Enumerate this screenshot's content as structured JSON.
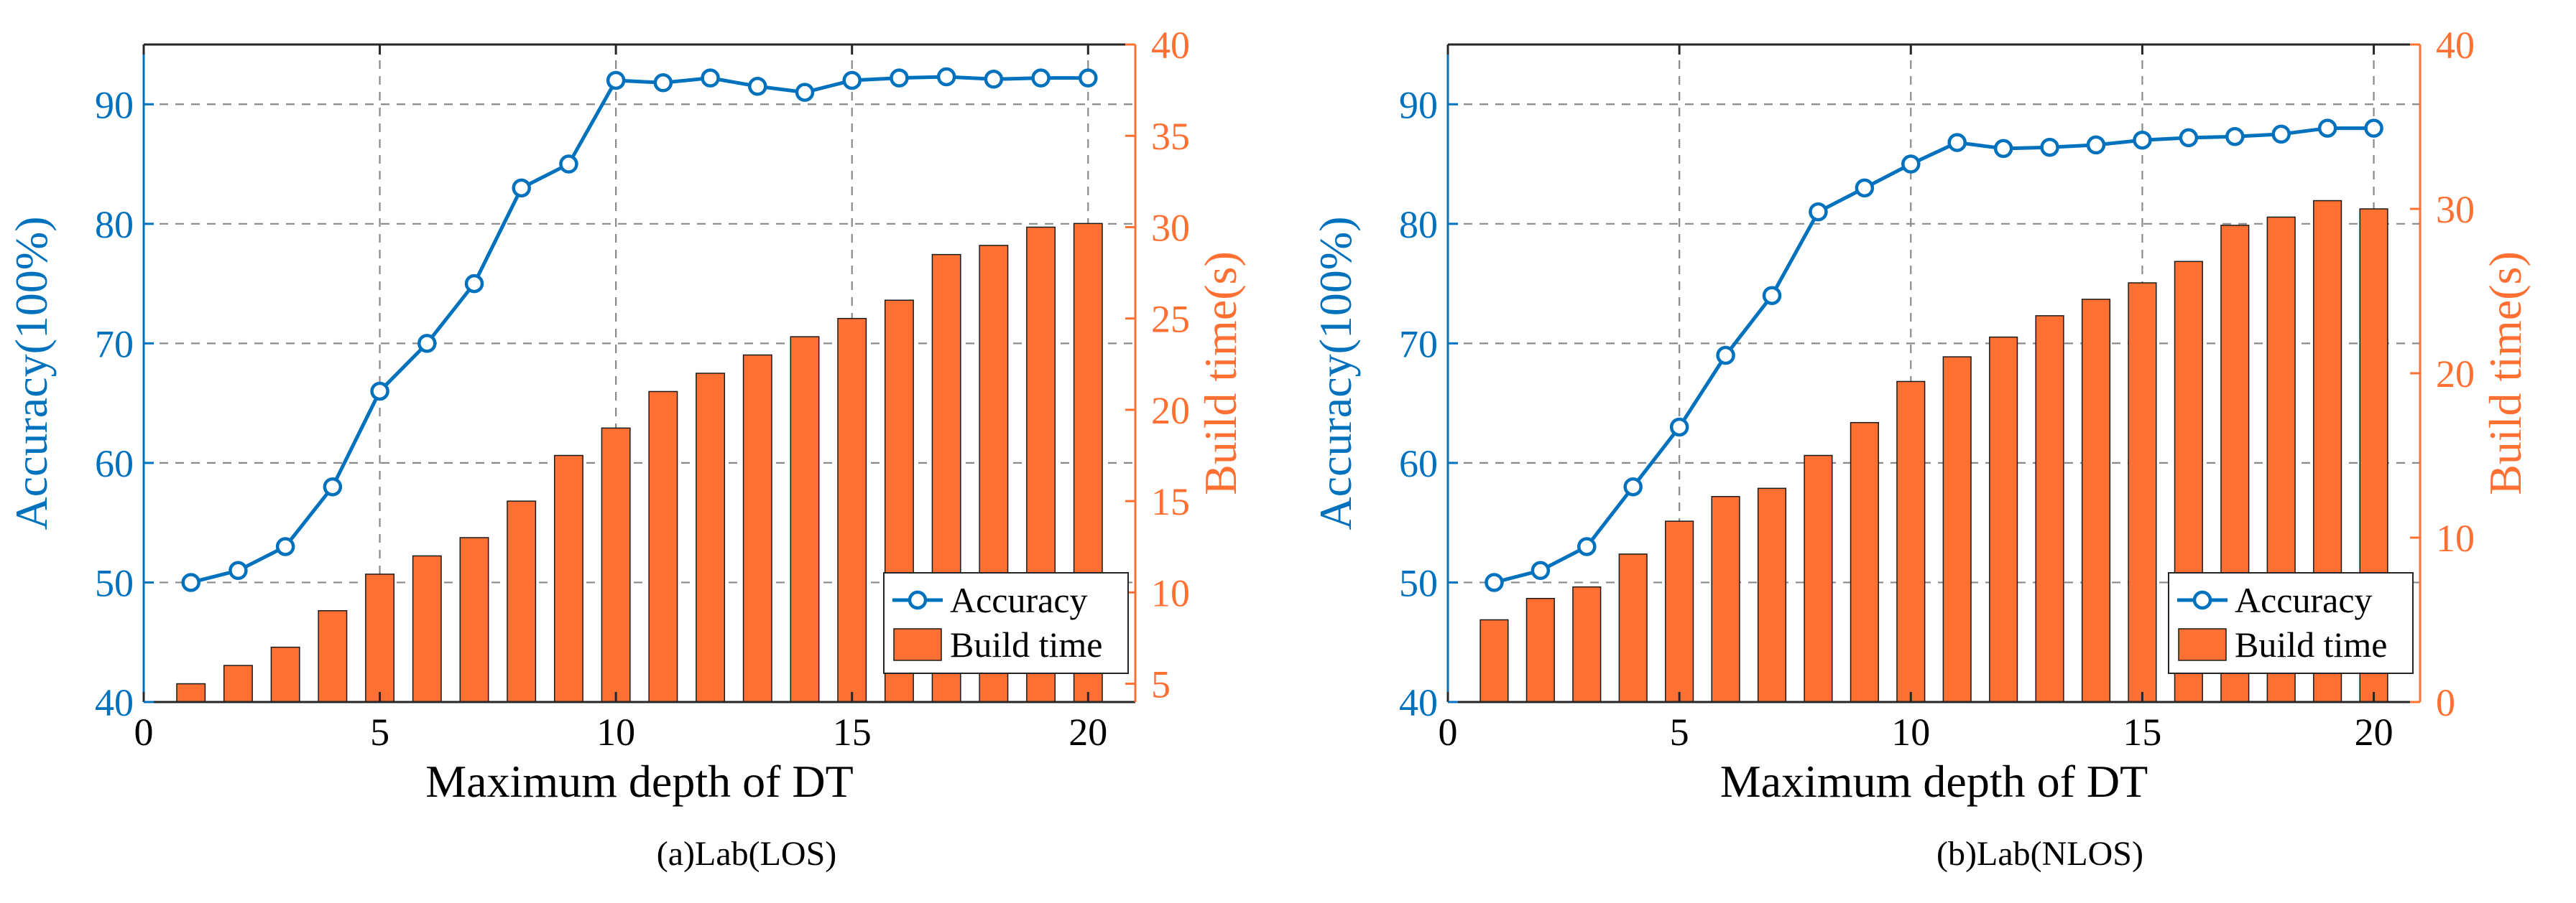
{
  "colors": {
    "accuracy": "#0072BD",
    "build_time": "#FF7032",
    "bar_edge": "#1a1a1a",
    "grid": "#8a8a8a",
    "axis": "#262626"
  },
  "chart_data": [
    {
      "type": "bar+line",
      "caption": "(a)Lab(LOS)",
      "xlabel": "Maximum depth of DT",
      "ylabel_left": "Accuracy(100%)",
      "ylabel_right": "Build time(s)",
      "xlim": [
        0,
        21
      ],
      "xticks": [
        0,
        5,
        10,
        15,
        20
      ],
      "ylim_left": [
        40,
        95
      ],
      "yticks_left": [
        40,
        50,
        60,
        70,
        80,
        90
      ],
      "ylim_right": [
        4,
        40
      ],
      "yticks_right": [
        5,
        10,
        15,
        20,
        25,
        30,
        35,
        40
      ],
      "x": [
        1,
        2,
        3,
        4,
        5,
        6,
        7,
        8,
        9,
        10,
        11,
        12,
        13,
        14,
        15,
        16,
        17,
        18,
        19,
        20
      ],
      "series": [
        {
          "name": "Accuracy",
          "type": "line",
          "axis": "left",
          "values": [
            50,
            51,
            53,
            58,
            66,
            70,
            75,
            83,
            85,
            92,
            91.8,
            92.2,
            91.5,
            91,
            92,
            92.2,
            92.3,
            92.1,
            92.2,
            92.2
          ]
        },
        {
          "name": "Build time",
          "type": "bar",
          "axis": "right",
          "values": [
            5,
            6,
            7,
            9,
            11,
            12,
            13,
            15,
            17.5,
            19,
            21,
            22,
            23,
            24,
            25,
            26,
            28.5,
            29,
            30,
            30.2
          ]
        }
      ],
      "legend": [
        "Accuracy",
        "Build time"
      ],
      "legend_position": "bottom-right"
    },
    {
      "type": "bar+line",
      "caption": "(b)Lab(NLOS)",
      "xlabel": "Maximum depth of DT",
      "ylabel_left": "Accuracy(100%)",
      "ylabel_right": "Build time(s)",
      "xlim": [
        0,
        21
      ],
      "xticks": [
        0,
        5,
        10,
        15,
        20
      ],
      "ylim_left": [
        40,
        95
      ],
      "yticks_left": [
        40,
        50,
        60,
        70,
        80,
        90
      ],
      "ylim_right": [
        0,
        40
      ],
      "yticks_right": [
        0,
        10,
        20,
        30,
        40
      ],
      "x": [
        1,
        2,
        3,
        4,
        5,
        6,
        7,
        8,
        9,
        10,
        11,
        12,
        13,
        14,
        15,
        16,
        17,
        18,
        19,
        20
      ],
      "series": [
        {
          "name": "Accuracy",
          "type": "line",
          "axis": "left",
          "values": [
            50,
            51,
            53,
            58,
            63,
            69,
            74,
            81,
            83,
            85,
            86.8,
            86.3,
            86.4,
            86.6,
            87,
            87.2,
            87.3,
            87.5,
            88,
            88
          ]
        },
        {
          "name": "Build time",
          "type": "bar",
          "axis": "right",
          "values": [
            5,
            6.3,
            7,
            9,
            11,
            12.5,
            13,
            15,
            17,
            19.5,
            21,
            22.2,
            23.5,
            24.5,
            25.5,
            26.8,
            29,
            29.5,
            30.5,
            30
          ]
        }
      ],
      "legend": [
        "Accuracy",
        "Build time"
      ],
      "legend_position": "bottom-right"
    }
  ]
}
